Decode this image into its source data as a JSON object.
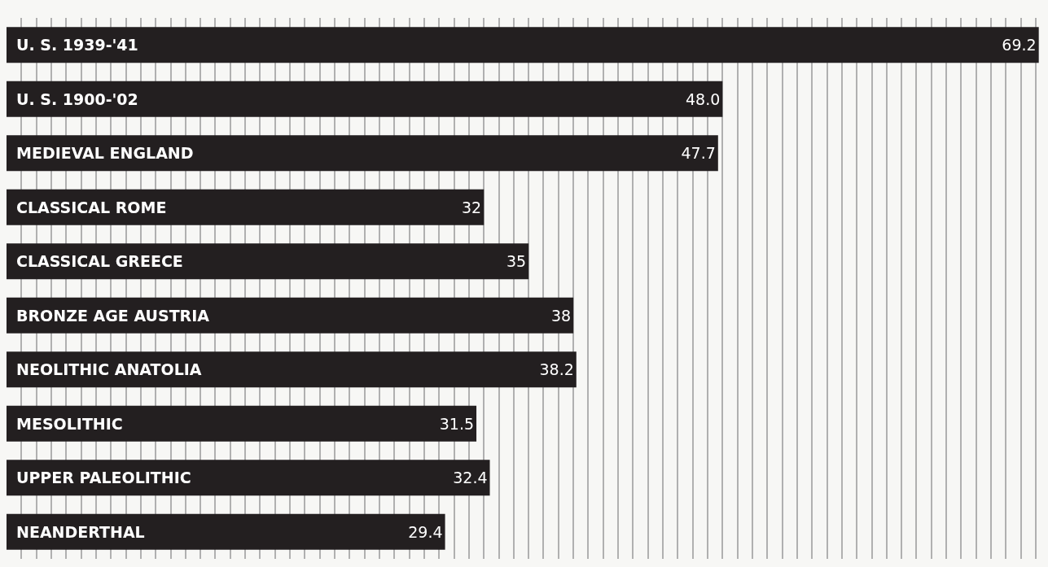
{
  "chart_data": {
    "type": "bar",
    "orientation": "horizontal",
    "categories": [
      "U. S. 1939-'41",
      "U. S. 1900-'02",
      "MEDIEVAL ENGLAND",
      "CLASSICAL ROME",
      "CLASSICAL GREECE",
      "BRONZE AGE AUSTRIA",
      "NEOLITHIC ANATOLIA",
      "MESOLITHIC",
      "UPPER PALEOLITHIC",
      "NEANDERTHAL"
    ],
    "values": [
      69.2,
      48.0,
      47.7,
      32,
      35,
      38,
      38.2,
      31.5,
      32.4,
      29.4
    ],
    "value_labels": [
      "69.2",
      "48.0",
      "47.7",
      "32",
      "35",
      "38",
      "38.2",
      "31.5",
      "32.4",
      "29.4"
    ],
    "color": "#231f20",
    "xlim": [
      0,
      69.6
    ],
    "grid": "x",
    "tick_labels": false
  }
}
